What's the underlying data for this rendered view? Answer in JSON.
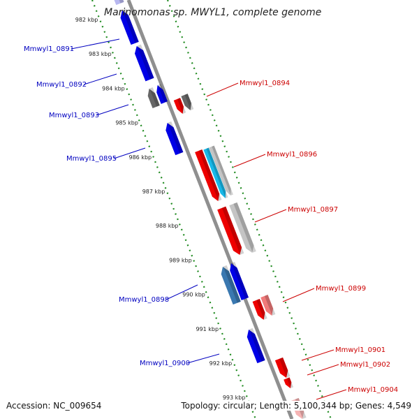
{
  "title": "Marinomonas sp. MWYL1, complete genome",
  "colors": {
    "backbone": "#8f8f8f",
    "tick_track": "#1f8a1f",
    "forward_label": "#0000c0",
    "reverse_label": "#cc0000",
    "gene_blue": "#0000e6",
    "gene_red": "#ee0000",
    "gene_gray": "#666666",
    "gene_lightgray": "#c4c4c4",
    "gene_cyan": "#18b8e8",
    "gene_steel": "#3a78b0",
    "gene_pink": "#f07a7a",
    "gene_lightpink": "#f6b4b4",
    "gene_lavender": "#b8b8f0"
  },
  "kbp_labels": [
    "982 kbp",
    "983 kbp",
    "984 kbp",
    "985 kbp",
    "986 kbp",
    "987 kbp",
    "988 kbp",
    "989 kbp",
    "990 kbp",
    "991 kbp",
    "992 kbp",
    "993 kbp"
  ],
  "forward_gene_labels": [
    "Mmwyl1_0891",
    "Mmwyl1_0892",
    "Mmwyl1_0893",
    "Mmwyl1_0895",
    "Mmwyl1_0898",
    "Mmwyl1_0900"
  ],
  "reverse_gene_labels": [
    "Mmwyl1_0894",
    "Mmwyl1_0896",
    "Mmwyl1_0897",
    "Mmwyl1_0899",
    "Mmwyl1_0901",
    "Mmwyl1_0902",
    "Mmwyl1_0904"
  ],
  "footer": {
    "accession": "Accession: NC_009654",
    "topology": "Topology: circular; Length: 5,100,344 bp; Genes: 4,549"
  }
}
